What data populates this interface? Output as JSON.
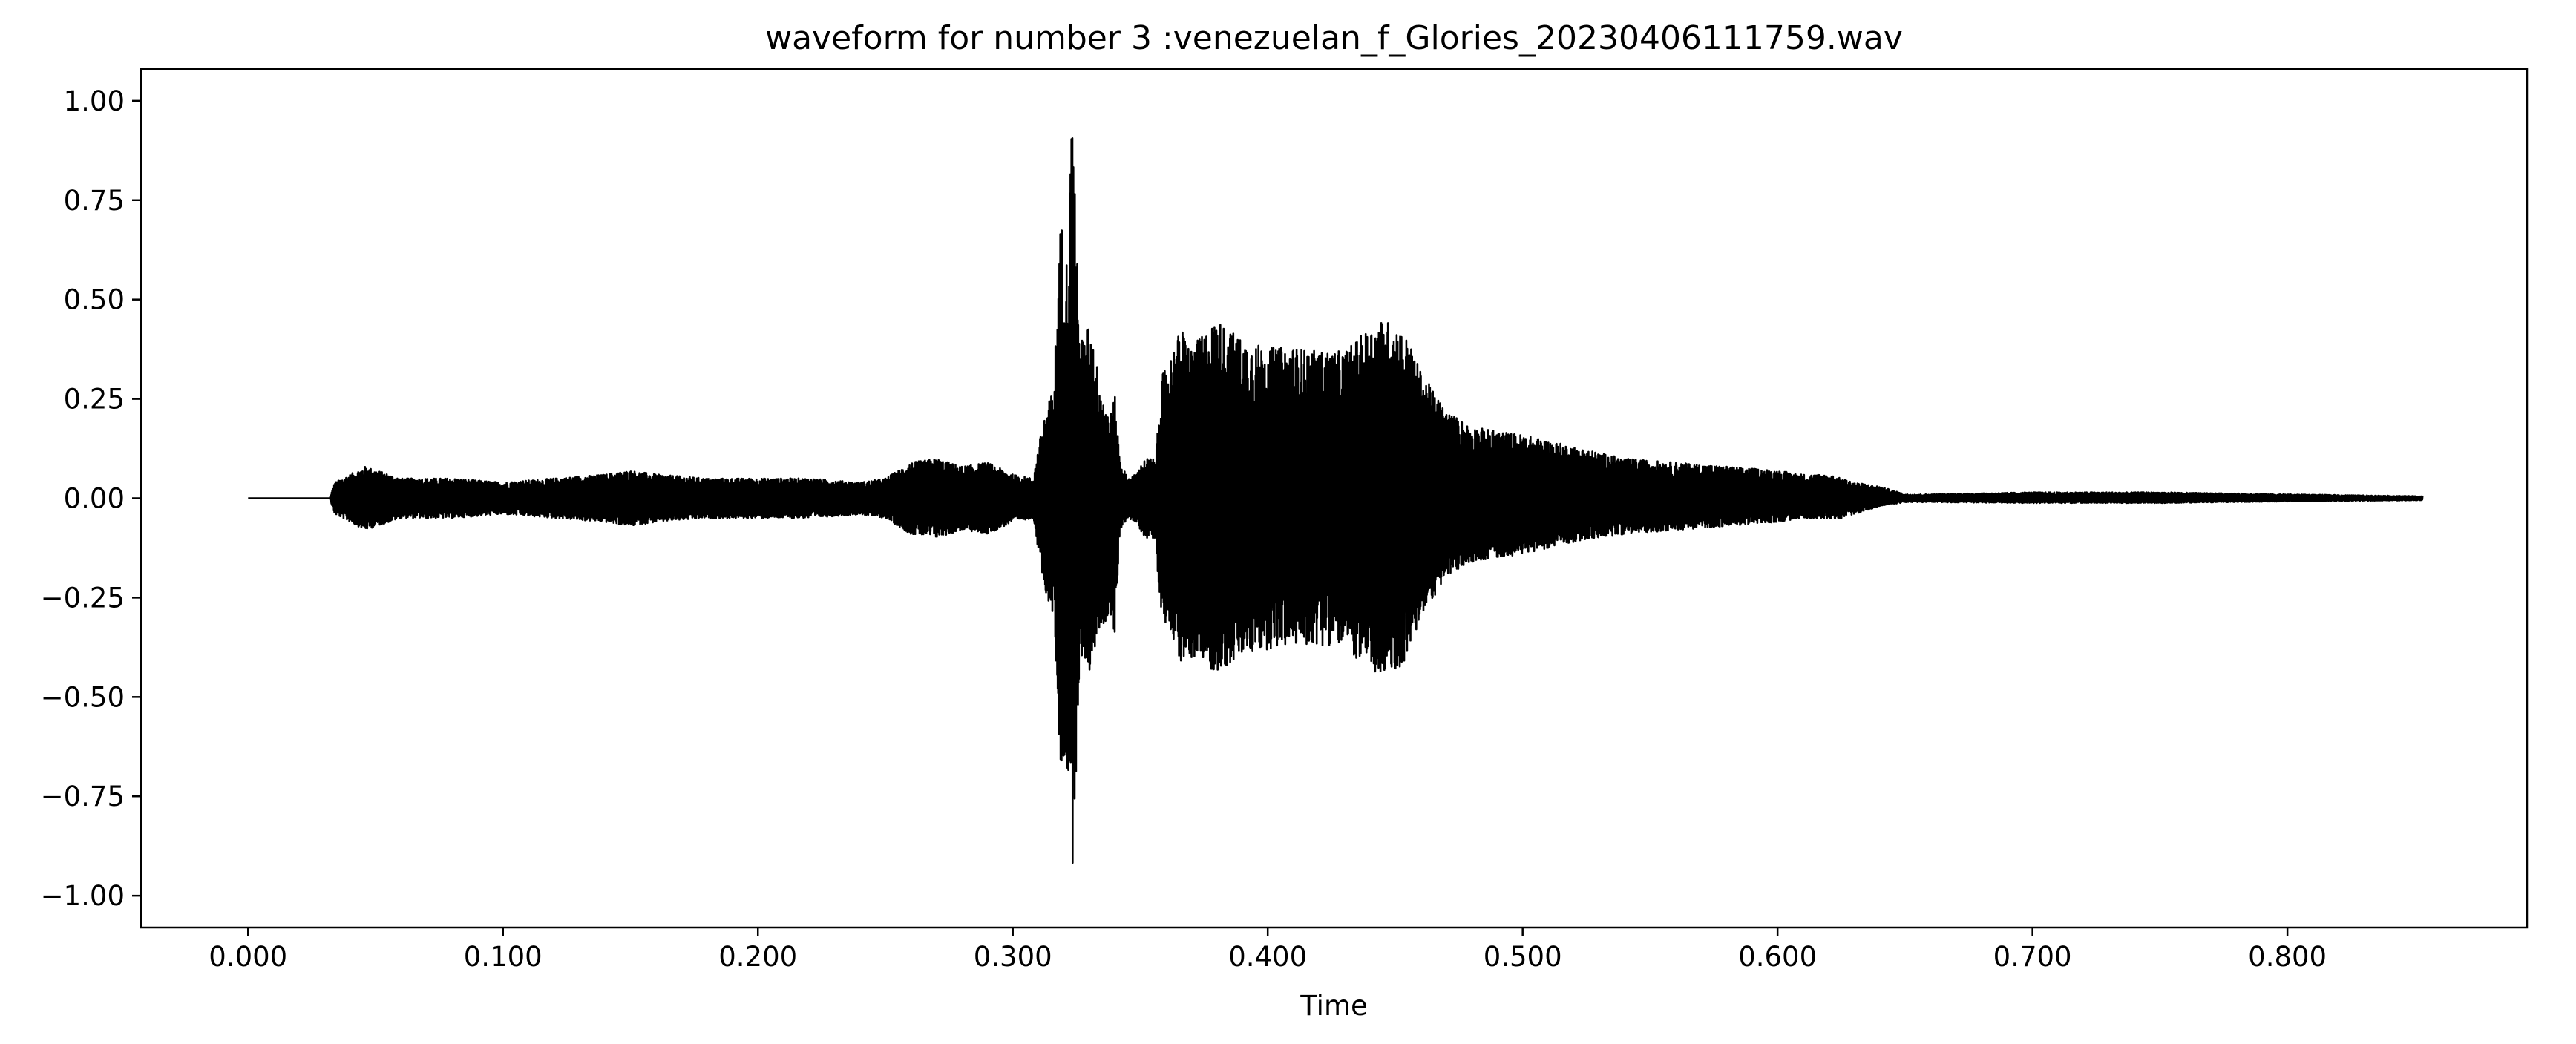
{
  "chart_data": {
    "type": "line",
    "title": "waveform for number 3 :venezuelan_f_Glories_20230406111759.wav",
    "xlabel": "Time",
    "ylabel": "",
    "xlim": [
      -0.042,
      0.894
    ],
    "ylim": [
      -1.08,
      1.08
    ],
    "x_ticks": [
      0.0,
      0.1,
      0.2,
      0.3,
      0.4,
      0.5,
      0.6,
      0.7,
      0.8
    ],
    "x_tick_labels": [
      "0.000",
      "0.100",
      "0.200",
      "0.300",
      "0.400",
      "0.500",
      "0.600",
      "0.700",
      "0.800"
    ],
    "y_ticks": [
      1.0,
      0.75,
      0.5,
      0.25,
      0.0,
      -0.25,
      -0.5,
      -0.75,
      -1.0
    ],
    "y_tick_labels": [
      "1.00",
      "0.75",
      "0.50",
      "0.25",
      "0.00",
      "−0.25",
      "−0.50",
      "−0.75",
      "−1.00"
    ],
    "grid": false,
    "line_color": "#000000",
    "series": [
      {
        "duration": 0.853,
        "envelope": {
          "x": [
            0.0,
            0.032,
            0.034,
            0.04,
            0.046,
            0.06,
            0.08,
            0.1,
            0.12,
            0.14,
            0.15,
            0.16,
            0.18,
            0.2,
            0.22,
            0.24,
            0.25,
            0.26,
            0.27,
            0.28,
            0.29,
            0.3,
            0.308,
            0.312,
            0.316,
            0.319,
            0.32,
            0.322,
            0.323,
            0.324,
            0.326,
            0.328,
            0.33,
            0.334,
            0.338,
            0.34,
            0.342,
            0.345,
            0.348,
            0.352,
            0.356,
            0.358,
            0.362,
            0.366,
            0.37,
            0.38,
            0.39,
            0.4,
            0.41,
            0.42,
            0.43,
            0.44,
            0.445,
            0.45,
            0.455,
            0.46,
            0.47,
            0.48,
            0.5,
            0.52,
            0.54,
            0.56,
            0.58,
            0.6,
            0.61,
            0.62,
            0.625,
            0.63,
            0.64,
            0.65,
            0.655,
            0.66,
            0.7,
            0.75,
            0.8,
            0.853
          ],
          "upper": [
            0.0,
            0.0,
            0.04,
            0.06,
            0.08,
            0.05,
            0.05,
            0.04,
            0.05,
            0.06,
            0.07,
            0.06,
            0.05,
            0.05,
            0.05,
            0.04,
            0.05,
            0.09,
            0.1,
            0.08,
            0.09,
            0.06,
            0.05,
            0.2,
            0.28,
            0.73,
            0.55,
            0.65,
            0.98,
            0.9,
            0.42,
            0.4,
            0.45,
            0.3,
            0.2,
            0.26,
            0.1,
            0.05,
            0.06,
            0.1,
            0.1,
            0.3,
            0.36,
            0.43,
            0.38,
            0.45,
            0.4,
            0.38,
            0.38,
            0.37,
            0.37,
            0.43,
            0.45,
            0.44,
            0.4,
            0.32,
            0.22,
            0.18,
            0.16,
            0.13,
            0.1,
            0.09,
            0.08,
            0.07,
            0.06,
            0.06,
            0.05,
            0.04,
            0.03,
            0.01,
            0.01,
            0.01,
            0.015,
            0.015,
            0.01,
            0.005
          ],
          "lower": [
            0.0,
            0.0,
            -0.04,
            -0.06,
            -0.08,
            -0.05,
            -0.05,
            -0.04,
            -0.05,
            -0.06,
            -0.07,
            -0.06,
            -0.05,
            -0.05,
            -0.05,
            -0.04,
            -0.05,
            -0.09,
            -0.1,
            -0.08,
            -0.09,
            -0.06,
            -0.05,
            -0.22,
            -0.3,
            -0.73,
            -0.65,
            -0.72,
            -0.98,
            -0.85,
            -0.45,
            -0.4,
            -0.44,
            -0.33,
            -0.3,
            -0.35,
            -0.08,
            -0.05,
            -0.06,
            -0.1,
            -0.1,
            -0.3,
            -0.33,
            -0.42,
            -0.4,
            -0.44,
            -0.4,
            -0.38,
            -0.37,
            -0.37,
            -0.37,
            -0.44,
            -0.45,
            -0.44,
            -0.4,
            -0.3,
            -0.2,
            -0.16,
            -0.14,
            -0.11,
            -0.09,
            -0.08,
            -0.07,
            -0.06,
            -0.05,
            -0.05,
            -0.05,
            -0.04,
            -0.02,
            -0.01,
            -0.01,
            -0.01,
            -0.012,
            -0.012,
            -0.008,
            -0.005
          ]
        }
      }
    ]
  }
}
